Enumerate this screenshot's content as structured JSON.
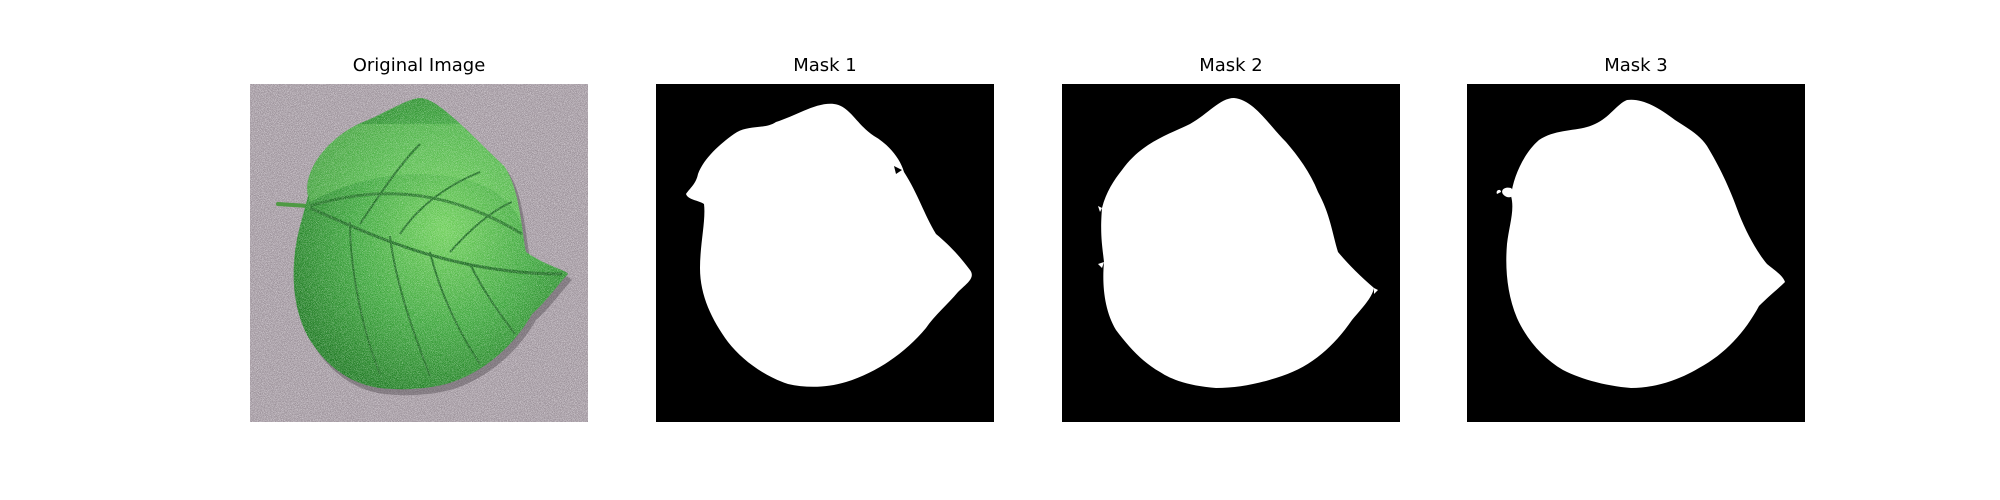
{
  "figure": {
    "panels": [
      {
        "title": "Original Image",
        "kind": "photo"
      },
      {
        "title": "Mask 1",
        "kind": "mask"
      },
      {
        "title": "Mask 2",
        "kind": "mask"
      },
      {
        "title": "Mask 3",
        "kind": "mask"
      }
    ]
  },
  "colors": {
    "background": "#ffffff",
    "sand": "#9a9098",
    "leaf_dark": "#1e7a22",
    "leaf_mid": "#3da63c",
    "leaf_light": "#6fcf5a",
    "mask_background": "#000000",
    "mask_foreground": "#ffffff"
  }
}
